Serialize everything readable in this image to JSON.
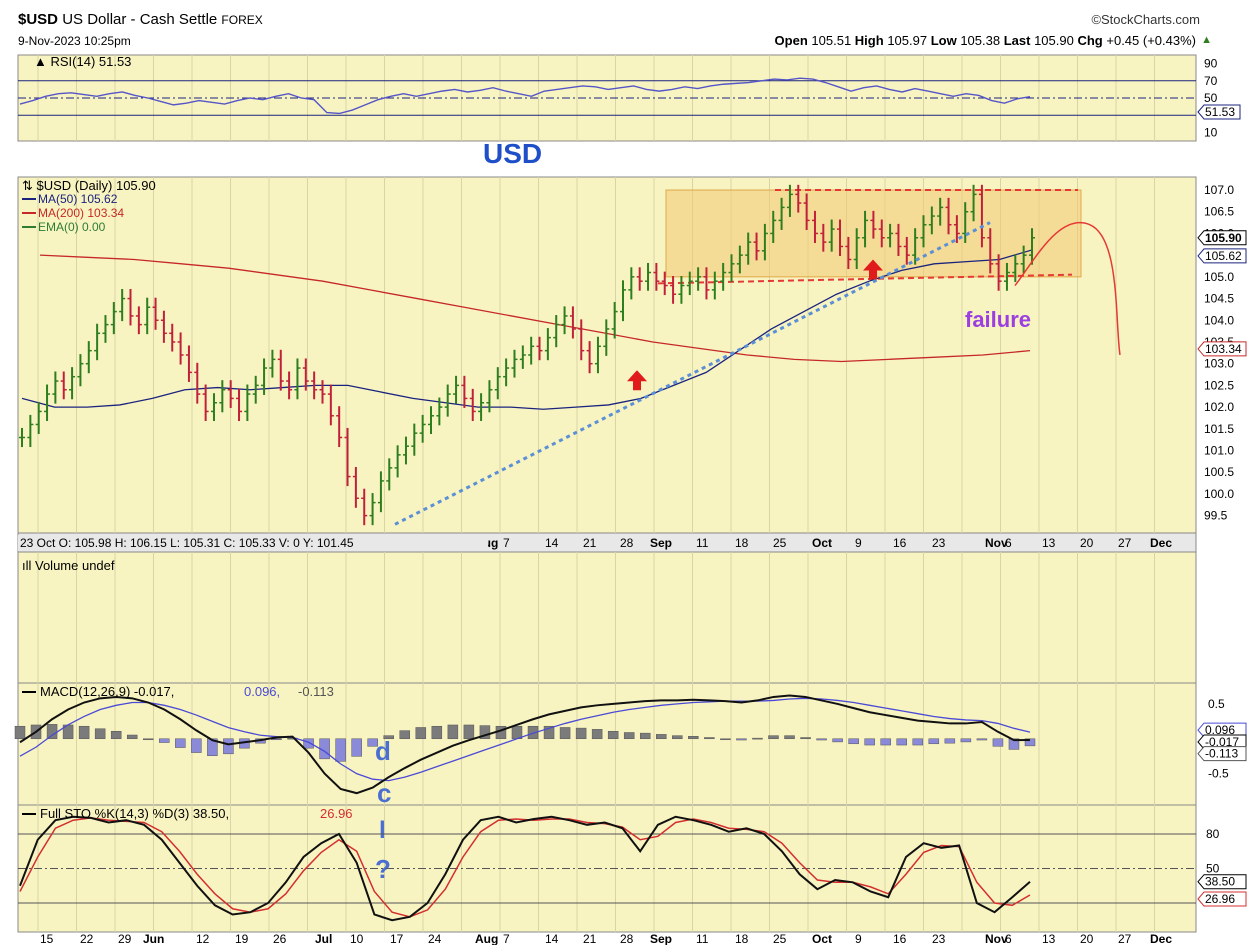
{
  "header": {
    "symbol": "$USD",
    "name": "US Dollar - Cash Settle",
    "exchange": "FOREX",
    "date": "9-Nov-2023 10:25pm",
    "brand": "©StockCharts.com",
    "ohlc": {
      "open_label": "Open",
      "open": "105.51",
      "high_label": "High",
      "high": "105.97",
      "low_label": "Low",
      "low": "105.38",
      "last_label": "Last",
      "last": "105.90",
      "chg_label": "Chg",
      "chg": "+0.45 (+0.43%)"
    }
  },
  "colors": {
    "panel_bg": "#f8f4c2",
    "up_bar": "#2e7d1e",
    "down_bar": "#c0203a",
    "ma50": "#1a237e",
    "ma200": "#c62828",
    "trendline": "#5b8fd6",
    "box": "#f3c873",
    "rsi_line": "#5555c8",
    "macd_line": "#111111",
    "signal_line": "#4a4ad6",
    "hist_pos": "#7b7b7b",
    "hist_neg": "#8a8ad8",
    "stoch_k": "#111111",
    "stoch_d": "#d32f2f",
    "annotation_blue": "#1f4fc8",
    "annotation_purple": "#9c3fe0"
  },
  "chart_data": [
    {
      "type": "line",
      "panel": "rsi",
      "title": "RSI(14) 51.53",
      "ylim": [
        0,
        100
      ],
      "ticks": [
        "90",
        "70",
        "50",
        "30",
        "10"
      ],
      "tick_values": [
        90,
        70,
        50,
        30,
        10
      ],
      "last_label": "51.53",
      "series": [
        {
          "name": "RSI(14)",
          "values": [
            43,
            47,
            52,
            55,
            56,
            54,
            52,
            55,
            57,
            53,
            50,
            46,
            42,
            44,
            47,
            45,
            43,
            47,
            50,
            48,
            52,
            55,
            50,
            48,
            33,
            32,
            36,
            42,
            48,
            52,
            55,
            52,
            55,
            58,
            60,
            57,
            59,
            62,
            58,
            55,
            52,
            58,
            60,
            62,
            64,
            63,
            60,
            62,
            64,
            60,
            58,
            60,
            63,
            61,
            64,
            66,
            67,
            68,
            70,
            72,
            71,
            73,
            72,
            68,
            63,
            58,
            62,
            64,
            60,
            57,
            61,
            58,
            55,
            52,
            55,
            53,
            47,
            44,
            49,
            51.53
          ]
        }
      ]
    },
    {
      "type": "bar",
      "panel": "price",
      "title": "$USD (Daily) 105.90",
      "ylim": [
        99.1,
        107.3
      ],
      "ticks": [
        "107.0",
        "106.5",
        "106.0",
        "105.5",
        "105.0",
        "104.5",
        "104.0",
        "103.5",
        "103.0",
        "102.5",
        "102.0",
        "101.5",
        "101.0",
        "100.5",
        "100.0",
        "99.5"
      ],
      "tick_values": [
        107.0,
        106.5,
        106.0,
        105.5,
        105.0,
        104.5,
        104.0,
        103.5,
        103.0,
        102.5,
        102.0,
        101.5,
        101.0,
        100.5,
        100.0,
        99.5
      ],
      "value_tags": [
        "105.90",
        "105.62",
        "103.34"
      ],
      "x_labels": [
        "15",
        "22",
        "29",
        "Jun",
        "12",
        "19",
        "26",
        "Jul",
        "10",
        "17",
        "24",
        "Aug",
        "7",
        "14",
        "21",
        "28",
        "Sep",
        "11",
        "18",
        "25",
        "Oct",
        "9",
        "16",
        "23",
        "Nov",
        "6",
        "13",
        "20",
        "27",
        "Dec"
      ],
      "date_axis_overlay": "23 Oct O: 105.98   H: 106.15   L: 105.31   C: 105.33   V: 0   Y: 101.45",
      "legend": [
        {
          "label": "MA(50) 105.62",
          "color": "#1a237e"
        },
        {
          "label": "MA(200) 103.34",
          "color": "#c62828"
        },
        {
          "label": "EMA(0) 0.00",
          "color": "#2e7d32"
        }
      ],
      "closes": [
        101.3,
        101.6,
        101.9,
        102.3,
        102.6,
        102.4,
        102.7,
        103.0,
        103.3,
        103.7,
        103.9,
        104.2,
        104.5,
        104.1,
        103.9,
        104.3,
        104.0,
        103.7,
        103.5,
        103.2,
        102.8,
        102.3,
        101.9,
        102.1,
        102.4,
        102.2,
        101.9,
        102.3,
        102.5,
        102.9,
        103.1,
        102.6,
        102.4,
        102.9,
        102.6,
        102.4,
        102.3,
        101.8,
        101.3,
        100.4,
        99.9,
        99.5,
        99.8,
        100.3,
        100.6,
        100.9,
        101.1,
        101.4,
        101.6,
        101.8,
        102.0,
        102.3,
        102.5,
        102.2,
        101.9,
        102.1,
        102.4,
        102.7,
        102.9,
        103.1,
        103.2,
        103.4,
        103.3,
        103.6,
        103.9,
        104.1,
        103.8,
        103.3,
        103.0,
        103.4,
        103.8,
        104.2,
        104.7,
        105.0,
        104.9,
        105.1,
        104.9,
        104.8,
        104.6,
        104.8,
        104.9,
        105.0,
        104.7,
        104.9,
        105.1,
        105.3,
        105.5,
        105.8,
        105.6,
        106.0,
        106.3,
        106.6,
        106.9,
        106.7,
        106.3,
        106.0,
        105.8,
        106.1,
        105.7,
        105.4,
        105.9,
        106.3,
        106.1,
        105.9,
        106.0,
        105.7,
        105.5,
        105.9,
        106.2,
        106.4,
        106.6,
        106.2,
        106.0,
        106.5,
        106.9,
        105.9,
        105.3,
        104.9,
        105.1,
        105.3,
        105.5,
        105.9
      ],
      "annotations": [
        "USD",
        "failure"
      ]
    },
    {
      "type": "bar",
      "panel": "volume",
      "title": "Volume undef",
      "values": []
    },
    {
      "type": "line",
      "panel": "macd",
      "title": "MACD(12,26,9) -0.017, 0.096, -0.113",
      "title_parts": [
        "MACD(12,26,9) -0.017,",
        "0.096,",
        "-0.113"
      ],
      "ticks": [
        "0.5",
        "-0.5"
      ],
      "tick_values": [
        0.5,
        -0.5
      ],
      "value_tags": [
        "0.096",
        "-0.017",
        "-0.113"
      ],
      "series": [
        {
          "name": "MACD",
          "values": [
            -0.05,
            0.1,
            0.28,
            0.42,
            0.52,
            0.58,
            0.6,
            0.58,
            0.52,
            0.42,
            0.28,
            0.12,
            -0.02,
            -0.08,
            -0.05,
            -0.02,
            0.02,
            0.03,
            -0.2,
            -0.5,
            -0.72,
            -0.78,
            -0.7,
            -0.55,
            -0.42,
            -0.3,
            -0.2,
            -0.1,
            -0.02,
            0.05,
            0.12,
            0.2,
            0.28,
            0.35,
            0.4,
            0.45,
            0.48,
            0.5,
            0.52,
            0.54,
            0.55,
            0.55,
            0.56,
            0.55,
            0.54,
            0.52,
            0.55,
            0.6,
            0.62,
            0.6,
            0.55,
            0.5,
            0.44,
            0.38,
            0.34,
            0.3,
            0.26,
            0.24,
            0.22,
            0.22,
            0.24,
            0.1,
            -0.02,
            -0.017
          ]
        },
        {
          "name": "Signal",
          "values": [
            -0.25,
            -0.12,
            0.05,
            0.2,
            0.32,
            0.42,
            0.48,
            0.52,
            0.52,
            0.48,
            0.42,
            0.34,
            0.25,
            0.16,
            0.1,
            0.05,
            0.03,
            0.02,
            -0.05,
            -0.18,
            -0.36,
            -0.5,
            -0.58,
            -0.6,
            -0.55,
            -0.48,
            -0.4,
            -0.32,
            -0.24,
            -0.16,
            -0.08,
            0.0,
            0.08,
            0.15,
            0.22,
            0.28,
            0.33,
            0.38,
            0.42,
            0.45,
            0.48,
            0.5,
            0.52,
            0.53,
            0.54,
            0.54,
            0.54,
            0.55,
            0.57,
            0.58,
            0.57,
            0.55,
            0.52,
            0.48,
            0.44,
            0.4,
            0.36,
            0.32,
            0.29,
            0.27,
            0.26,
            0.22,
            0.15,
            0.096
          ]
        }
      ],
      "annotations": [
        "d",
        "c",
        "l",
        "?"
      ]
    },
    {
      "type": "line",
      "panel": "stochastic",
      "title": "Full STO %K(14,3) %D(3) 38.50, 26.96",
      "title_parts": [
        "Full STO %K(14,3) %D(3) 38.50,",
        "26.96"
      ],
      "ylim": [
        0,
        100
      ],
      "ticks": [
        "80",
        "50"
      ],
      "tick_values": [
        80,
        50
      ],
      "value_tags": [
        "38.50",
        "26.96"
      ],
      "series": [
        {
          "name": "%K",
          "values": [
            35,
            75,
            92,
            95,
            94,
            90,
            92,
            88,
            75,
            55,
            35,
            18,
            10,
            12,
            20,
            38,
            60,
            72,
            80,
            55,
            10,
            5,
            8,
            20,
            45,
            75,
            92,
            95,
            90,
            93,
            95,
            92,
            88,
            90,
            85,
            65,
            88,
            95,
            92,
            88,
            82,
            85,
            80,
            65,
            45,
            32,
            40,
            38,
            30,
            25,
            60,
            72,
            68,
            70,
            20,
            12,
            25,
            38.5
          ]
        },
        {
          "name": "%D",
          "values": [
            30,
            60,
            85,
            92,
            94,
            92,
            91,
            90,
            82,
            65,
            45,
            28,
            15,
            12,
            15,
            28,
            48,
            64,
            75,
            65,
            30,
            12,
            8,
            14,
            32,
            60,
            82,
            92,
            93,
            92,
            93,
            93,
            90,
            89,
            86,
            75,
            78,
            90,
            93,
            90,
            85,
            84,
            82,
            72,
            55,
            40,
            38,
            38,
            34,
            28,
            45,
            64,
            70,
            69,
            38,
            20,
            18,
            26.96
          ]
        }
      ]
    }
  ]
}
